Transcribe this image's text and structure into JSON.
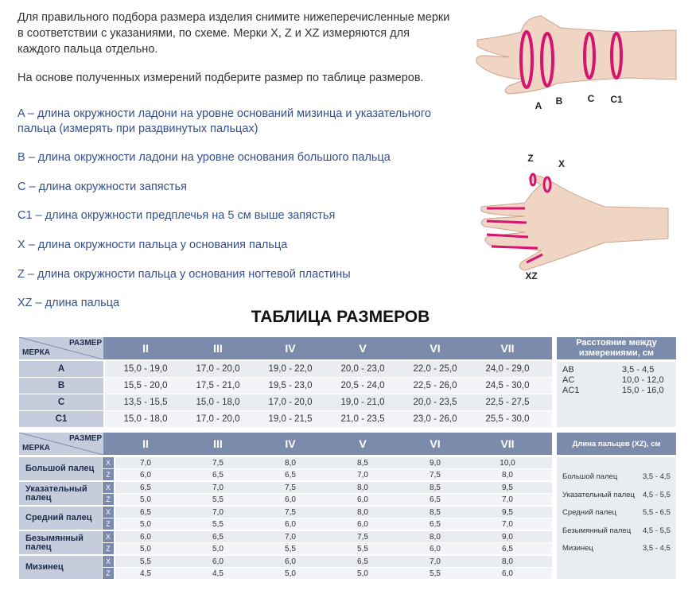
{
  "intro": "Для правильного подбора размера изделия снимите нижеперечисленные мерки в соответствии с указаниями, по схеме. Мерки X, Z и XZ измеряются для каждого пальца отдельно.",
  "intro2": "На основе полученных измерений подберите размер по таблице размеров.",
  "definitions": [
    "A – длина окружности ладони на уровне оснований мизинца и указательного пальца (измерять при раздвинутых пальцах)",
    "B – длина окружности ладони на уровне основания большого пальца",
    "C – длина окружности запястья",
    "C1 – длина окружности предплечья на 5 см выше запястья",
    "X – длина окружности пальца у основания пальца",
    "Z – длина окружности пальца у основания ногтевой пластины",
    "XZ – длина пальца"
  ],
  "diagram1": {
    "labels": [
      "A",
      "B",
      "C",
      "C1"
    ]
  },
  "diagram2": {
    "labels": [
      "Z",
      "X",
      "XZ"
    ]
  },
  "title": "ТАБЛИЦА РАЗМЕРОВ",
  "table1": {
    "corner_top": "РАЗМЕР",
    "corner_bottom": "МЕРКА",
    "sizes": [
      "II",
      "III",
      "IV",
      "V",
      "VI",
      "VII"
    ],
    "rows": [
      {
        "label": "A",
        "values": [
          "15,0 - 19,0",
          "17,0 - 20,0",
          "19,0 - 22,0",
          "20,0 - 23,0",
          "22,0 - 25,0",
          "24,0 - 29,0"
        ]
      },
      {
        "label": "B",
        "values": [
          "15,5 - 20,0",
          "17,5 - 21,0",
          "19,5 - 23,0",
          "20,5 - 24,0",
          "22,5 - 26,0",
          "24,5 - 30,0"
        ]
      },
      {
        "label": "C",
        "values": [
          "13,5 - 15,5",
          "15,0 - 18,0",
          "17,0 - 20,0",
          "19,0 - 21,0",
          "20,0 - 23,5",
          "22,5 - 27,5"
        ]
      },
      {
        "label": "C1",
        "values": [
          "15,0 - 18,0",
          "17,0 - 20,0",
          "19,0 - 21,5",
          "21,0 - 23,5",
          "23,0 - 26,0",
          "25,5 - 30,0"
        ]
      }
    ]
  },
  "side1": {
    "header": "Расстояние между измерениями, см",
    "rows": [
      [
        "AB",
        "3,5 - 4,5"
      ],
      [
        "AC",
        "10,0 - 12,0"
      ],
      [
        "AC1",
        "15,0 - 16,0"
      ]
    ]
  },
  "table2": {
    "corner_top": "РАЗМЕР",
    "corner_bottom": "МЕРКА",
    "sizes": [
      "II",
      "III",
      "IV",
      "V",
      "VI",
      "VII"
    ],
    "fingers": [
      {
        "label": "Большой палец",
        "rows": [
          {
            "key": "X",
            "values": [
              "7,0",
              "7,5",
              "8,0",
              "8,5",
              "9,0",
              "10,0"
            ]
          },
          {
            "key": "Z",
            "values": [
              "6,0",
              "6,5",
              "6,5",
              "7,0",
              "7,5",
              "8,0"
            ]
          }
        ]
      },
      {
        "label": "Указательный палец",
        "rows": [
          {
            "key": "X",
            "values": [
              "6,5",
              "7,0",
              "7,5",
              "8,0",
              "8,5",
              "9,5"
            ]
          },
          {
            "key": "Z",
            "values": [
              "5,0",
              "5,5",
              "6,0",
              "6,0",
              "6,5",
              "7,0"
            ]
          }
        ]
      },
      {
        "label": "Средний палец",
        "rows": [
          {
            "key": "X",
            "values": [
              "6,5",
              "7,0",
              "7,5",
              "8,0",
              "8,5",
              "9,5"
            ]
          },
          {
            "key": "Z",
            "values": [
              "5,0",
              "5,5",
              "6,0",
              "6,0",
              "6,5",
              "7,0"
            ]
          }
        ]
      },
      {
        "label": "Безымянный палец",
        "rows": [
          {
            "key": "X",
            "values": [
              "6,0",
              "6,5",
              "7,0",
              "7,5",
              "8,0",
              "9,0"
            ]
          },
          {
            "key": "Z",
            "values": [
              "5,0",
              "5,0",
              "5,5",
              "5,5",
              "6,0",
              "6,5"
            ]
          }
        ]
      },
      {
        "label": "Мизинец",
        "rows": [
          {
            "key": "X",
            "values": [
              "5,5",
              "6,0",
              "6,0",
              "6,5",
              "7,0",
              "8,0"
            ]
          },
          {
            "key": "Z",
            "values": [
              "4,5",
              "4,5",
              "5,0",
              "5,0",
              "5,5",
              "6,0"
            ]
          }
        ]
      }
    ]
  },
  "side2": {
    "header": "Длина пальцев (XZ), см",
    "rows": [
      [
        "Большой палец",
        "3,5 - 4,5"
      ],
      [
        "Указательный палец",
        "4,5 - 5,5"
      ],
      [
        "Средний палец",
        "5,5 - 6,5"
      ],
      [
        "Безымянный палец",
        "4,5 - 5,5"
      ],
      [
        "Мизинец",
        "3,5 - 4,5"
      ]
    ]
  }
}
